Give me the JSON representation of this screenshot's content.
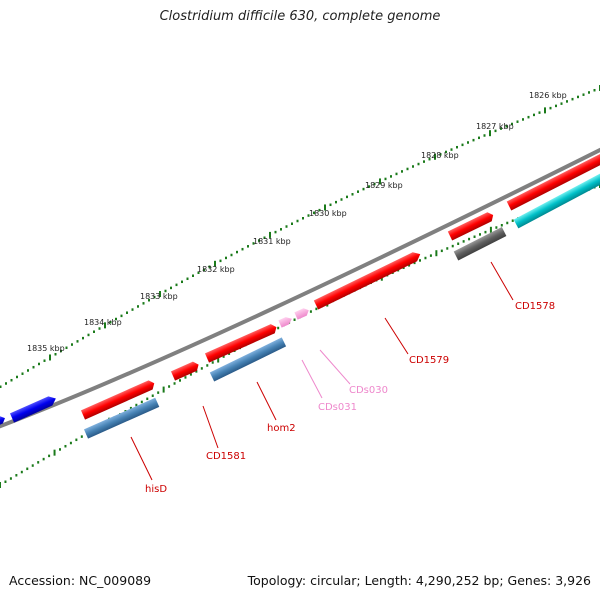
{
  "title": "Clostridium difficile 630, complete genome",
  "footer": {
    "accession": "Accession: NC_009089",
    "summary": "Topology: circular; Length: 4,290,252 bp; Genes: 3,926"
  },
  "ticks": [
    {
      "label": "1826 kbp"
    },
    {
      "label": "1827 kbp"
    },
    {
      "label": "1828 kbp"
    },
    {
      "label": "1829 kbp"
    },
    {
      "label": "1830 kbp"
    },
    {
      "label": "1831 kbp"
    },
    {
      "label": "1832 kbp"
    },
    {
      "label": "1833 kbp"
    },
    {
      "label": "1834 kbp"
    },
    {
      "label": "1835 kbp"
    }
  ],
  "gene_labels": [
    {
      "name": "hisD",
      "color": "#cc0000"
    },
    {
      "name": "CD1581",
      "color": "#cc0000"
    },
    {
      "name": "hom2",
      "color": "#cc0000"
    },
    {
      "name": "CDs031",
      "color": "#ee88cc"
    },
    {
      "name": "CDs030",
      "color": "#ee88cc"
    },
    {
      "name": "CD1579",
      "color": "#cc0000"
    },
    {
      "name": "CD1578",
      "color": "#cc0000"
    }
  ],
  "colors": {
    "backbone": "#808080",
    "cds": "#ff0000",
    "trna": "#ffaadd",
    "blue_feature": "#0000ee",
    "steel_feature": "#4682b4",
    "cyan_feature": "#00c0c8",
    "gray_feature": "#606060",
    "tick": "#1a7a1a"
  }
}
